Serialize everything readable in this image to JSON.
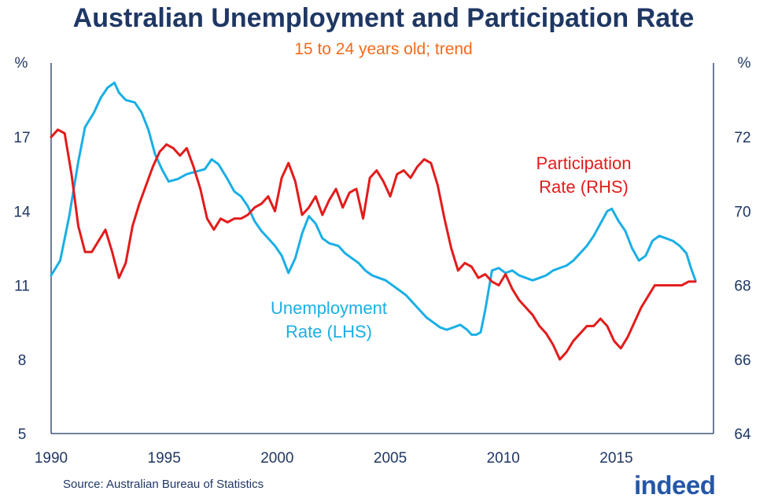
{
  "chart_data": {
    "type": "line",
    "title": "Australian Unemployment and Participation Rate",
    "subtitle": "15 to 24 years old; trend",
    "x_ticks": [
      "1990",
      "1995",
      "2000",
      "2005",
      "2010",
      "2015"
    ],
    "xlim": [
      1990,
      2019.3
    ],
    "y_left": {
      "unit": "%",
      "ticks": [
        "5",
        "8",
        "11",
        "14",
        "17"
      ],
      "lim": [
        5,
        20
      ]
    },
    "y_right": {
      "unit": "%",
      "ticks": [
        "64",
        "66",
        "68",
        "70",
        "72"
      ],
      "lim": [
        64,
        74
      ]
    },
    "grid": false,
    "series": [
      {
        "name": "Unemployment Rate (LHS)",
        "label_lines": [
          "Unemployment",
          "Rate (LHS)"
        ],
        "axis": "left",
        "color": "#1aafe6",
        "x": [
          1990.0,
          1990.4,
          1990.8,
          1991.2,
          1991.5,
          1991.9,
          1992.2,
          1992.5,
          1992.8,
          1993.0,
          1993.3,
          1993.7,
          1994.0,
          1994.3,
          1994.6,
          1994.9,
          1995.2,
          1995.6,
          1996.0,
          1996.4,
          1996.8,
          1997.1,
          1997.4,
          1997.8,
          1998.1,
          1998.4,
          1998.7,
          1999.0,
          1999.3,
          1999.6,
          1999.9,
          2000.2,
          2000.5,
          2000.8,
          2001.1,
          2001.4,
          2001.7,
          2002.0,
          2002.3,
          2002.7,
          2003.0,
          2003.3,
          2003.6,
          2003.9,
          2004.2,
          2004.5,
          2004.8,
          2005.1,
          2005.4,
          2005.7,
          2006.0,
          2006.3,
          2006.6,
          2006.9,
          2007.2,
          2007.5,
          2007.8,
          2008.1,
          2008.4,
          2008.6,
          2008.8,
          2009.0,
          2009.2,
          2009.5,
          2009.8,
          2010.1,
          2010.4,
          2010.7,
          2011.0,
          2011.3,
          2011.6,
          2011.9,
          2012.2,
          2012.5,
          2012.8,
          2013.1,
          2013.4,
          2013.7,
          2014.0,
          2014.3,
          2014.6,
          2014.8,
          2015.1,
          2015.4,
          2015.7,
          2016.0,
          2016.3,
          2016.6,
          2016.9,
          2017.2,
          2017.5,
          2017.8,
          2018.1,
          2018.3,
          2018.5
        ],
        "values": [
          11.4,
          12.0,
          13.8,
          16.0,
          17.4,
          18.0,
          18.6,
          19.0,
          19.2,
          18.8,
          18.5,
          18.4,
          18.0,
          17.3,
          16.3,
          15.7,
          15.2,
          15.3,
          15.5,
          15.6,
          15.7,
          16.1,
          15.9,
          15.3,
          14.8,
          14.6,
          14.2,
          13.6,
          13.2,
          12.9,
          12.6,
          12.2,
          11.5,
          12.1,
          13.1,
          13.8,
          13.5,
          12.9,
          12.7,
          12.6,
          12.3,
          12.1,
          11.9,
          11.6,
          11.4,
          11.3,
          11.2,
          11.0,
          10.8,
          10.6,
          10.3,
          10.0,
          9.7,
          9.5,
          9.3,
          9.2,
          9.3,
          9.4,
          9.2,
          9.0,
          9.0,
          9.1,
          10.0,
          11.6,
          11.7,
          11.5,
          11.6,
          11.4,
          11.3,
          11.2,
          11.3,
          11.4,
          11.6,
          11.7,
          11.8,
          12.0,
          12.3,
          12.6,
          13.0,
          13.5,
          14.0,
          14.1,
          13.6,
          13.2,
          12.5,
          12.0,
          12.2,
          12.8,
          13.0,
          12.9,
          12.8,
          12.6,
          12.3,
          11.7,
          11.2
        ]
      },
      {
        "name": "Participation Rate (RHS)",
        "label_lines": [
          "Participation",
          "Rate (RHS)"
        ],
        "axis": "right",
        "color": "#e31b1b",
        "x": [
          1990.0,
          1990.3,
          1990.6,
          1990.9,
          1991.2,
          1991.5,
          1991.8,
          1992.1,
          1992.4,
          1992.7,
          1993.0,
          1993.3,
          1993.6,
          1993.9,
          1994.2,
          1994.5,
          1994.8,
          1995.1,
          1995.4,
          1995.7,
          1996.0,
          1996.3,
          1996.6,
          1996.9,
          1997.2,
          1997.5,
          1997.8,
          1998.1,
          1998.4,
          1998.7,
          1999.0,
          1999.3,
          1999.6,
          1999.9,
          2000.2,
          2000.5,
          2000.8,
          2001.1,
          2001.4,
          2001.7,
          2002.0,
          2002.3,
          2002.6,
          2002.9,
          2003.2,
          2003.5,
          2003.8,
          2004.1,
          2004.4,
          2004.7,
          2005.0,
          2005.3,
          2005.6,
          2005.9,
          2006.2,
          2006.5,
          2006.8,
          2007.1,
          2007.4,
          2007.7,
          2008.0,
          2008.3,
          2008.6,
          2008.9,
          2009.2,
          2009.5,
          2009.8,
          2010.1,
          2010.4,
          2010.7,
          2011.0,
          2011.3,
          2011.6,
          2011.9,
          2012.2,
          2012.5,
          2012.8,
          2013.1,
          2013.4,
          2013.7,
          2014.0,
          2014.3,
          2014.6,
          2014.9,
          2015.2,
          2015.5,
          2015.8,
          2016.1,
          2016.4,
          2016.7,
          2017.0,
          2017.3,
          2017.6,
          2017.9,
          2018.2,
          2018.5
        ],
        "values": [
          72.0,
          72.2,
          72.1,
          71.0,
          69.6,
          68.9,
          68.9,
          69.2,
          69.5,
          68.9,
          68.2,
          68.6,
          69.6,
          70.2,
          70.7,
          71.2,
          71.6,
          71.8,
          71.7,
          71.5,
          71.7,
          71.2,
          70.6,
          69.8,
          69.5,
          69.8,
          69.7,
          69.8,
          69.8,
          69.9,
          70.1,
          70.2,
          70.4,
          70.0,
          70.9,
          71.3,
          70.8,
          69.9,
          70.1,
          70.4,
          69.9,
          70.3,
          70.6,
          70.1,
          70.5,
          70.6,
          69.8,
          70.9,
          71.1,
          70.8,
          70.4,
          71.0,
          71.1,
          70.9,
          71.2,
          71.4,
          71.3,
          70.7,
          69.8,
          69.0,
          68.4,
          68.6,
          68.5,
          68.2,
          68.3,
          68.1,
          68.0,
          68.3,
          67.9,
          67.6,
          67.4,
          67.2,
          66.9,
          66.7,
          66.4,
          66.0,
          66.2,
          66.5,
          66.7,
          66.9,
          66.9,
          67.1,
          66.9,
          66.5,
          66.3,
          66.6,
          67.0,
          67.4,
          67.7,
          68.0,
          68.0,
          68.0,
          68.0,
          68.0,
          68.1,
          68.1
        ]
      }
    ]
  },
  "footer": {
    "source": "Source: Australian Bureau of Statistics",
    "logo_text": "indeed"
  }
}
